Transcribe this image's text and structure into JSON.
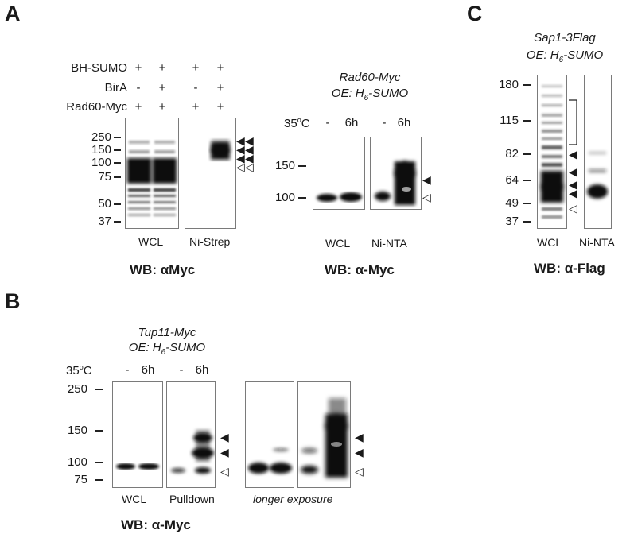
{
  "colors": {
    "band": "#111111",
    "frame": "#7a7a7a",
    "text": "#1a1a1a"
  },
  "panelA": {
    "letter": "A",
    "left": {
      "rows": [
        {
          "label": "BH-SUMO",
          "values": [
            "+",
            "+",
            "+",
            "+"
          ]
        },
        {
          "label": "BirA",
          "values": [
            "-",
            "+",
            "-",
            "+"
          ]
        },
        {
          "label": "Rad60-Myc",
          "values": [
            "+",
            "+",
            "+",
            "+"
          ]
        }
      ],
      "markers": [
        "250",
        "150",
        "100",
        "75",
        "50",
        "37"
      ],
      "lane_labels": [
        "WCL",
        "Ni-Strep"
      ],
      "wb_label": "WB: αMyc"
    },
    "right": {
      "title_line1": "Rad60-Myc",
      "title_line2_pre": "OE: H",
      "title_line2_sub": "6",
      "title_line2_post": "-SUMO",
      "temp_label": "35",
      "temp_sup": "o",
      "temp_unit": "C",
      "conditions": [
        "-",
        "6h",
        "-",
        "6h"
      ],
      "markers": [
        "150",
        "100"
      ],
      "lane_labels": [
        "WCL",
        "Ni-NTA"
      ],
      "wb_label": "WB: α-Myc"
    }
  },
  "panelB": {
    "letter": "B",
    "title_line1": "Tup11-Myc",
    "title_line2_pre": "OE: H",
    "title_line2_sub": "6",
    "title_line2_post": "-SUMO",
    "temp_label": "35",
    "temp_sup": "o",
    "temp_unit": "C",
    "conditions": [
      "-",
      "6h",
      "-",
      "6h"
    ],
    "markers": [
      "250",
      "150",
      "100",
      "75"
    ],
    "lane_labels": [
      "WCL",
      "Pulldown"
    ],
    "exposure_label": "longer exposure",
    "wb_label": "WB: α-Myc"
  },
  "panelC": {
    "letter": "C",
    "title_line1": "Sap1-3Flag",
    "title_line2_pre": "OE: H",
    "title_line2_sub": "6",
    "title_line2_post": "-SUMO",
    "markers": [
      "180",
      "115",
      "82",
      "64",
      "49",
      "37"
    ],
    "lane_labels": [
      "WCL",
      "Ni-NTA"
    ],
    "wb_label": "WB: α-Flag"
  },
  "symbols": {
    "filled_arrow": "◀",
    "open_arrow": "◁"
  }
}
